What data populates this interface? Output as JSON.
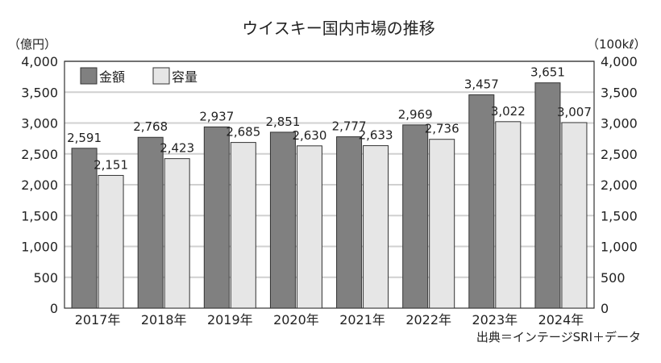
{
  "chart_data": {
    "type": "bar",
    "title": "ウイスキー国内市場の推移",
    "ylabel_left": "（億円）",
    "ylabel_right": "（100kℓ）",
    "ylim": [
      0,
      4000
    ],
    "yticks": [
      "0",
      "500",
      "1,000",
      "1,500",
      "2,000",
      "2,500",
      "3,000",
      "3,500",
      "4,000"
    ],
    "categories": [
      "2017年",
      "2018年",
      "2019年",
      "2020年",
      "2021年",
      "2022年",
      "2023年",
      "2024年"
    ],
    "series": [
      {
        "name": "金額",
        "color": "#808080",
        "values": [
          2591,
          2768,
          2937,
          2851,
          2777,
          2969,
          3457,
          3651
        ],
        "labels": [
          "2,591",
          "2,768",
          "2,937",
          "2,851",
          "2,777",
          "2,969",
          "3,457",
          "3,651"
        ]
      },
      {
        "name": "容量",
        "color": "#e6e6e6",
        "values": [
          2151,
          2423,
          2685,
          2630,
          2633,
          2736,
          3022,
          3007
        ],
        "labels": [
          "2,151",
          "2,423",
          "2,685",
          "2,630",
          "2,633",
          "2,736",
          "3,022",
          "3,007"
        ]
      }
    ],
    "legend": "top-left",
    "grid": true,
    "source": "出典＝インテージSRI＋データ"
  }
}
